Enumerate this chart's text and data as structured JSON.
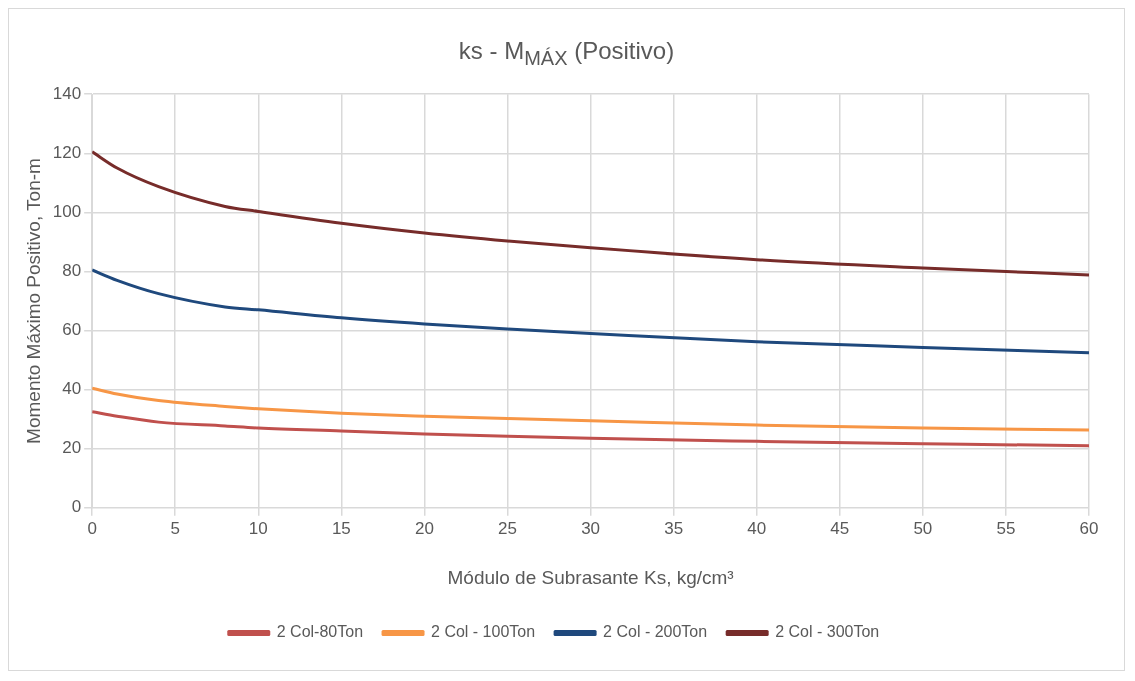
{
  "chart_data": {
    "type": "line",
    "title": "ks - M$_{MÁX}$ (Positivo)",
    "xlabel": "Módulo de Subrasante Ks, kg/cm³",
    "ylabel": "Momento Máximo Positivo, Ton-m",
    "x": [
      0,
      1.5,
      4,
      8,
      10,
      15,
      20,
      25,
      30,
      40,
      50,
      60
    ],
    "series": [
      {
        "name": "2 Col-80Ton",
        "color": "#c0504d",
        "values": [
          32.5,
          31,
          29,
          27.7,
          27,
          26,
          25,
          24.2,
          23.5,
          22.5,
          21.7,
          21
        ]
      },
      {
        "name": "2 Col - 100Ton",
        "color": "#f79646",
        "values": [
          40.5,
          38.5,
          36.3,
          34.3,
          33.5,
          32,
          31,
          30.2,
          29.5,
          28,
          27,
          26.3
        ]
      },
      {
        "name": "2 Col - 200Ton",
        "color": "#1f497d",
        "values": [
          80.5,
          77,
          72.5,
          68,
          67,
          64.3,
          62.2,
          60.5,
          59,
          56.2,
          54.3,
          52.5
        ]
      },
      {
        "name": "2 Col - 300Ton",
        "color": "#772c2a",
        "values": [
          120.5,
          115,
          108.7,
          102,
          100.3,
          96.3,
          93,
          90.3,
          88,
          84,
          81.2,
          78.8
        ]
      }
    ],
    "xlim": [
      0,
      60
    ],
    "xticks": [
      0,
      5,
      10,
      15,
      20,
      25,
      30,
      35,
      40,
      45,
      50,
      55,
      60
    ],
    "ylim": [
      0,
      140
    ],
    "yticks": [
      0,
      20,
      40,
      60,
      80,
      100,
      120,
      140
    ],
    "grid": true,
    "legend": "bottom",
    "marker": "none",
    "line_style": "solid"
  }
}
